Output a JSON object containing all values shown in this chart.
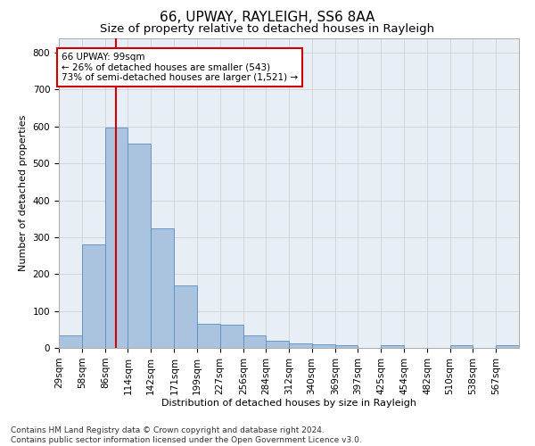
{
  "title": "66, UPWAY, RAYLEIGH, SS6 8AA",
  "subtitle": "Size of property relative to detached houses in Rayleigh",
  "xlabel": "Distribution of detached houses by size in Rayleigh",
  "ylabel": "Number of detached properties",
  "bar_edges": [
    29,
    58,
    86,
    114,
    142,
    171,
    199,
    227,
    256,
    284,
    312,
    340,
    369,
    397,
    425,
    454,
    482,
    510,
    538,
    567,
    595
  ],
  "bar_heights": [
    35,
    280,
    598,
    553,
    325,
    170,
    65,
    63,
    35,
    20,
    12,
    10,
    8,
    0,
    8,
    0,
    0,
    8,
    0,
    8,
    0
  ],
  "bar_color": "#aac4e0",
  "bar_edge_color": "#5a8fc0",
  "property_sqm": 99,
  "vline_color": "#cc0000",
  "annotation_line1": "66 UPWAY: 99sqm",
  "annotation_line2": "← 26% of detached houses are smaller (543)",
  "annotation_line3": "73% of semi-detached houses are larger (1,521) →",
  "annotation_box_color": "#cc0000",
  "ylim": [
    0,
    840
  ],
  "yticks": [
    0,
    100,
    200,
    300,
    400,
    500,
    600,
    700,
    800
  ],
  "grid_color": "#cccccc",
  "bg_color": "#e8eef5",
  "footnote": "Contains HM Land Registry data © Crown copyright and database right 2024.\nContains public sector information licensed under the Open Government Licence v3.0.",
  "title_fontsize": 11,
  "subtitle_fontsize": 9.5,
  "axis_label_fontsize": 8,
  "tick_fontsize": 7.5,
  "annotation_fontsize": 7.5,
  "footnote_fontsize": 6.5
}
